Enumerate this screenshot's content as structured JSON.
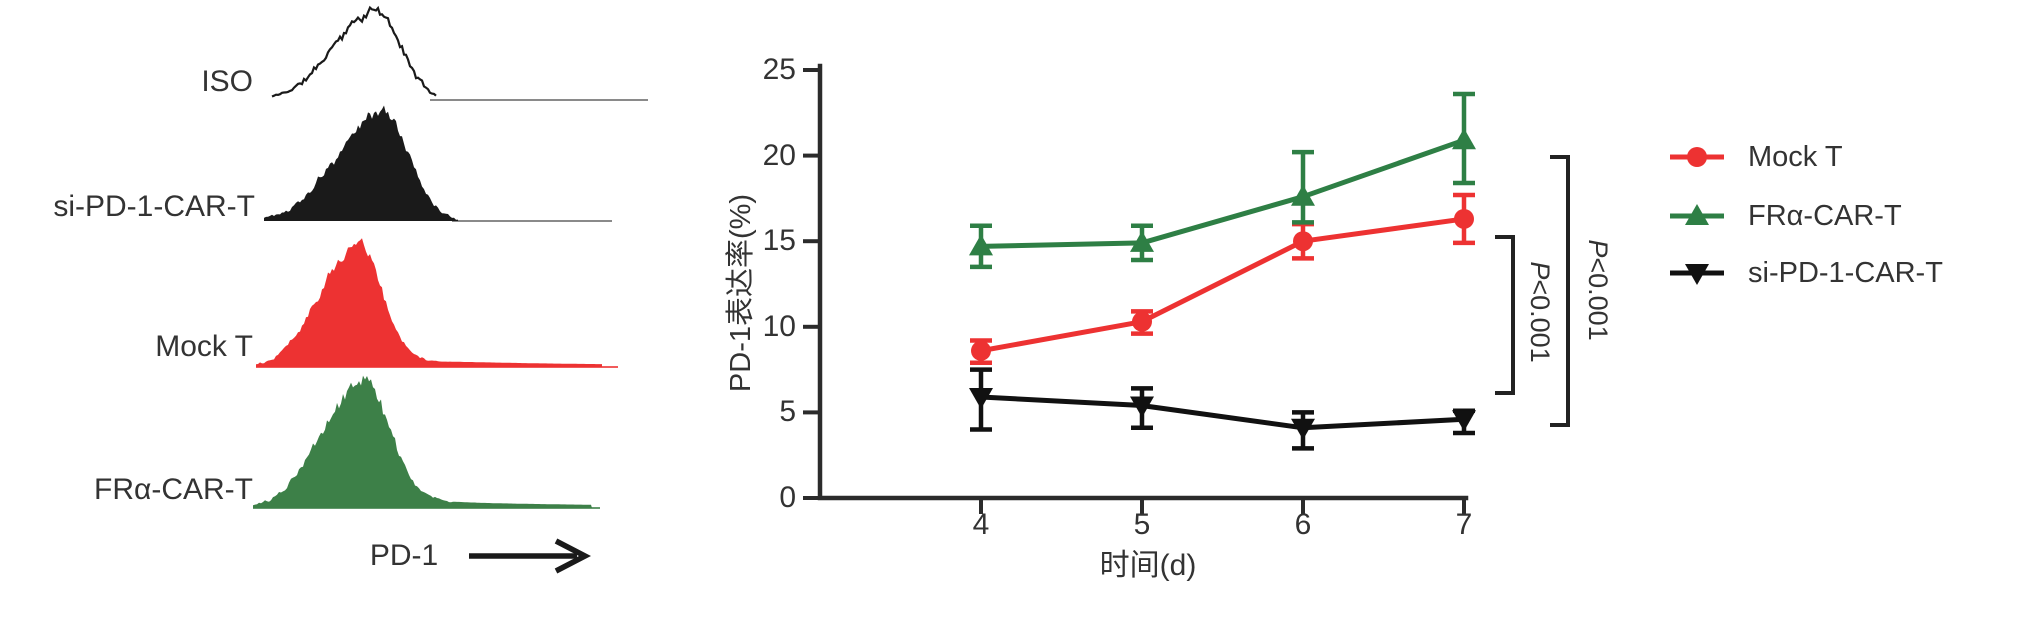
{
  "figure": {
    "background": "#ffffff"
  },
  "left_panel": {
    "histograms": [
      {
        "label": "ISO",
        "color": "#1a1a1a",
        "fill": false
      },
      {
        "label": "si-PD-1-CAR-T",
        "color": "#1a1a1a",
        "fill": true
      },
      {
        "label": "Mock T",
        "color": "#ed3232",
        "fill": true
      },
      {
        "label": "FRα-CAR-T",
        "color": "#3d8048",
        "fill": true
      }
    ],
    "x_axis_label": "PD-1",
    "arrow_icon": "right-arrow"
  },
  "chart_data": {
    "type": "line",
    "x": [
      4,
      5,
      6,
      7
    ],
    "xlabel": "时间(d)",
    "ylabel": "PD-1表达率(%)",
    "ylim": [
      0,
      25
    ],
    "yticks": [
      0,
      5,
      10,
      15,
      20,
      25
    ],
    "grid": false,
    "legend_position": "right-outside",
    "series": [
      {
        "name": "Mock T",
        "color": "#ed3232",
        "marker": "circle",
        "values": [
          8.6,
          10.3,
          15.0,
          16.3
        ],
        "err_up": [
          0.6,
          0.6,
          1.0,
          1.4
        ],
        "err_down": [
          0.7,
          0.7,
          1.0,
          1.4
        ]
      },
      {
        "name": "FRα-CAR-T",
        "color": "#2e7f45",
        "marker": "triangle-up",
        "values": [
          14.7,
          14.9,
          17.6,
          20.9
        ],
        "err_up": [
          1.2,
          1.0,
          2.6,
          2.7
        ],
        "err_down": [
          1.2,
          1.0,
          1.5,
          2.5
        ]
      },
      {
        "name": "si-PD-1-CAR-T",
        "color": "#111111",
        "marker": "triangle-down",
        "values": [
          5.9,
          5.4,
          4.1,
          4.6
        ],
        "err_up": [
          1.6,
          1.0,
          0.9,
          0.5
        ],
        "err_down": [
          1.9,
          1.3,
          1.2,
          0.8
        ]
      }
    ],
    "annotations": [
      {
        "p": "P",
        "value": "<0.001"
      },
      {
        "p": "P",
        "value": "<0.001"
      }
    ]
  }
}
